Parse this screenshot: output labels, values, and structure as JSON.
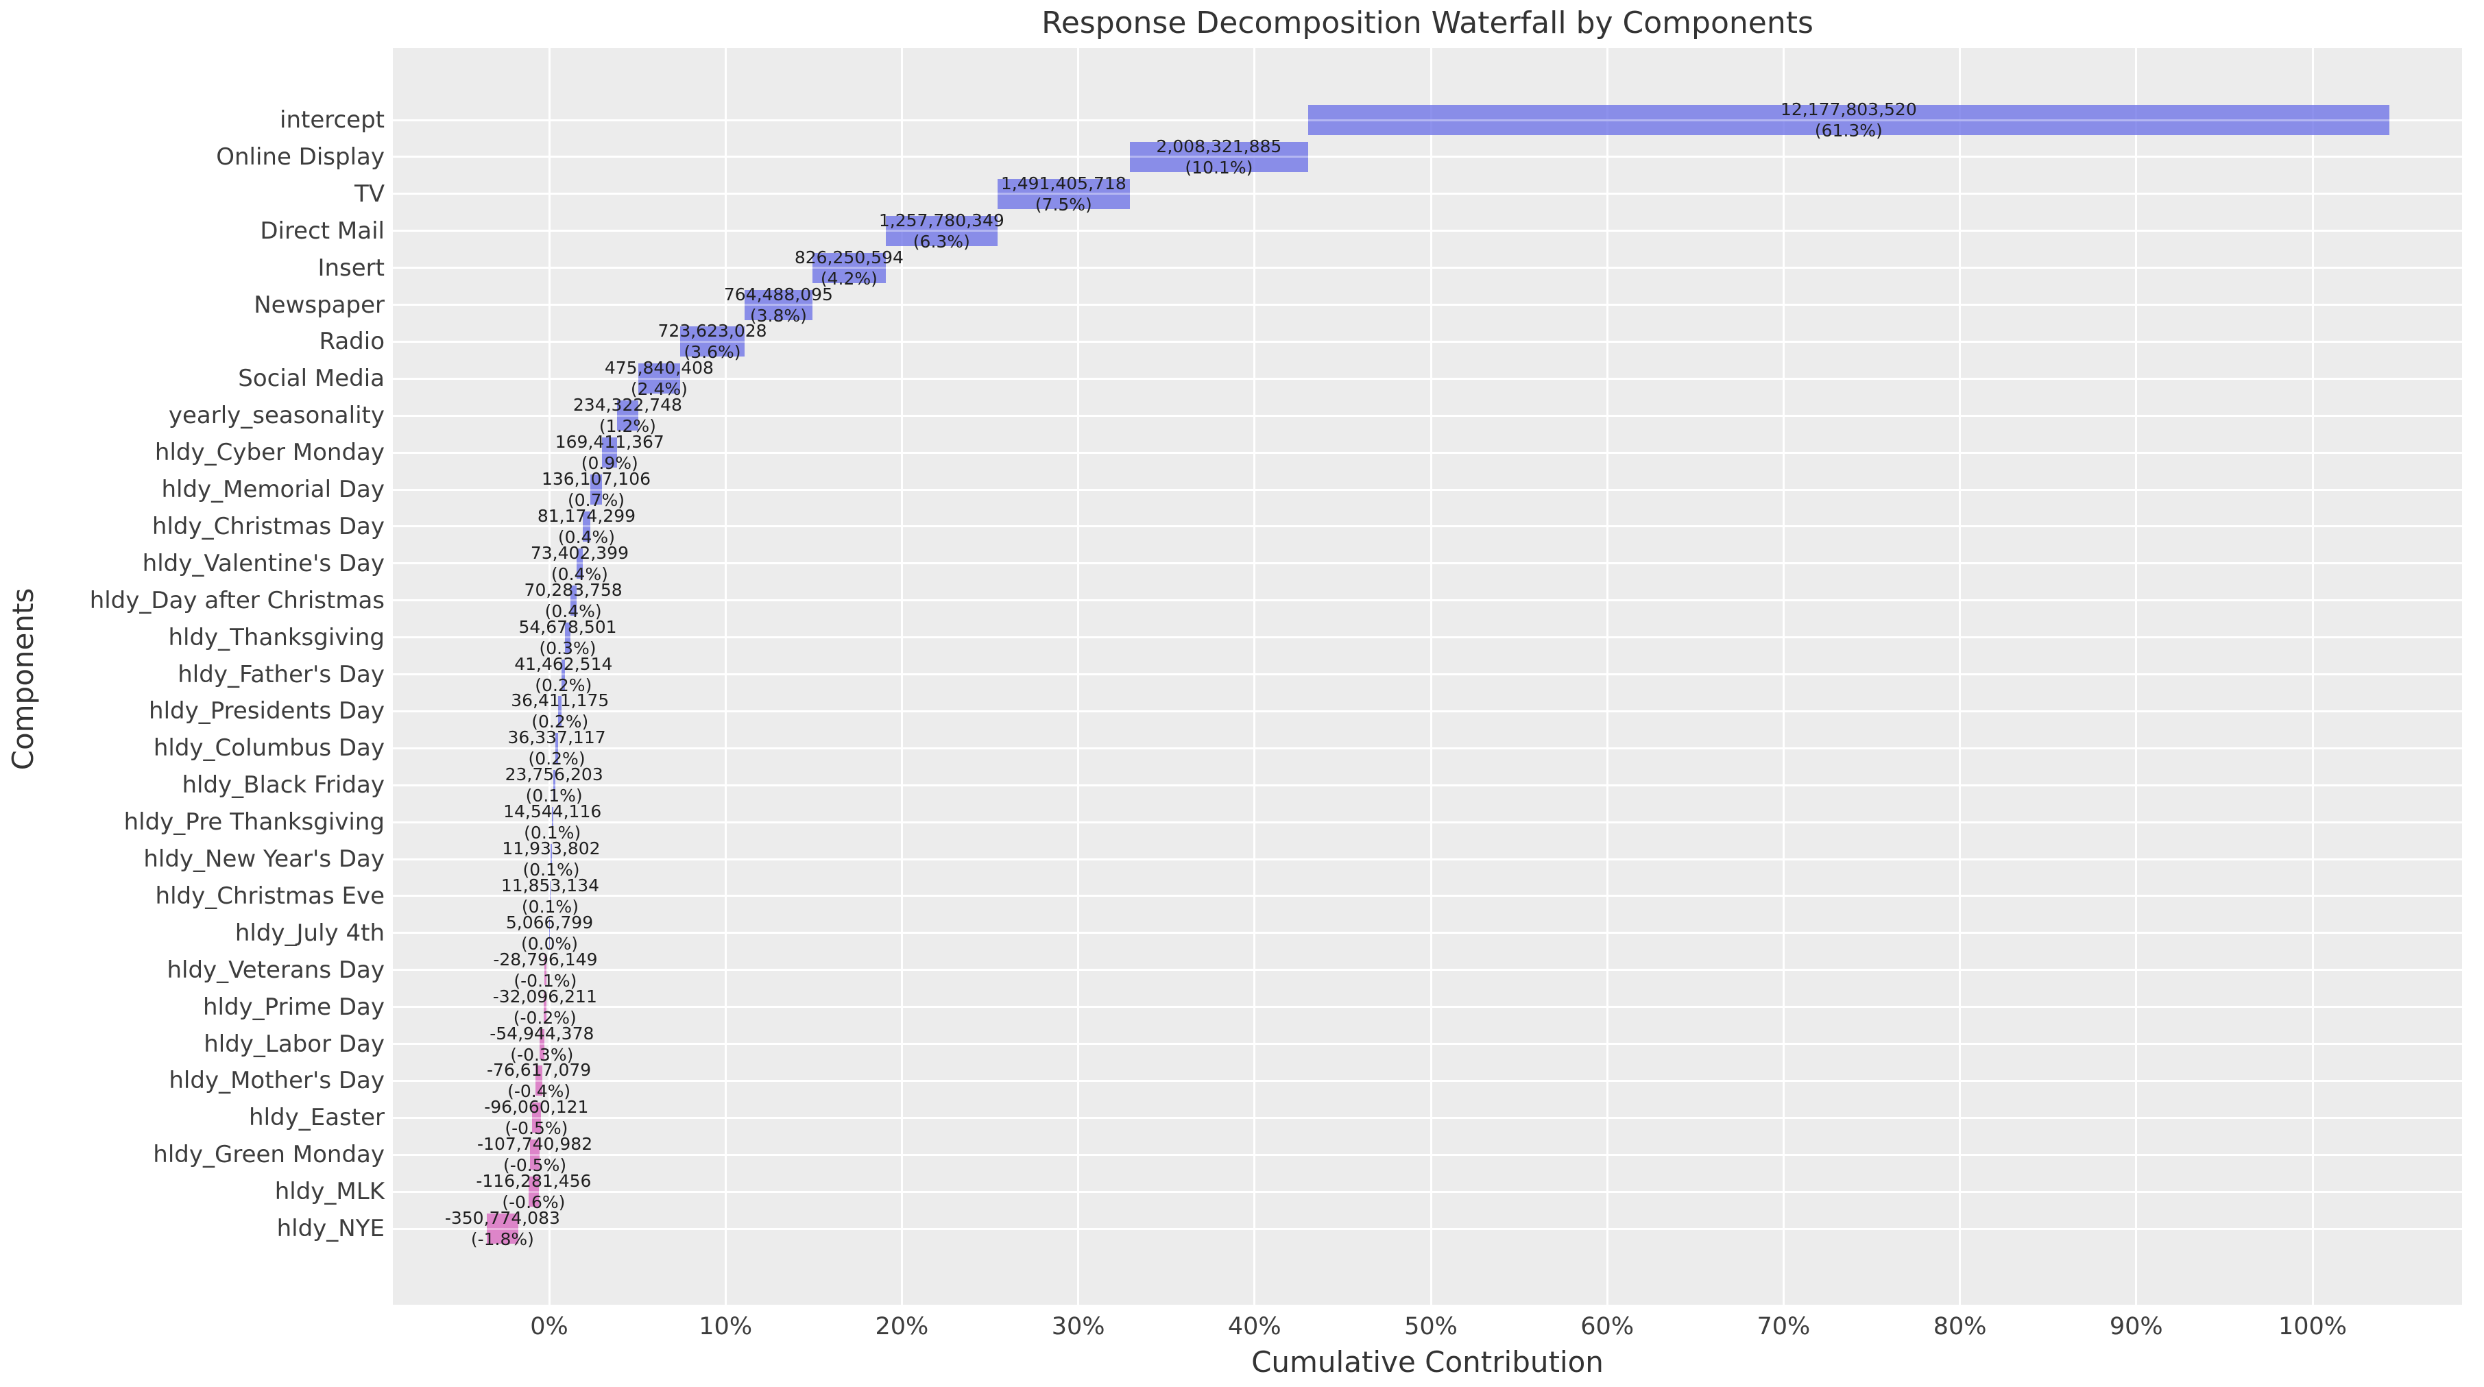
{
  "title": "Response Decomposition Waterfall by Components",
  "chart_data": {
    "type": "bar",
    "subtype": "waterfall",
    "orientation": "horizontal",
    "title": "Response Decomposition Waterfall by Components",
    "xlabel": "Cumulative Contribution",
    "ylabel": "Components",
    "grid": true,
    "legend": false,
    "x_ticks": [
      "0%",
      "10%",
      "20%",
      "30%",
      "40%",
      "50%",
      "60%",
      "70%",
      "80%",
      "90%",
      "100%"
    ],
    "x_tick_values": [
      0,
      10,
      20,
      30,
      40,
      50,
      60,
      70,
      80,
      90,
      100
    ],
    "colors": {
      "positive_bar": "#8A8EE8",
      "negative_bar": "#DE86C9",
      "plot_background": "#ECECEC",
      "gridline": "#ffffff",
      "text": "#333333"
    },
    "rows": [
      {
        "label": "intercept",
        "value": 12177803520,
        "value_label": "12,177,803,520",
        "pct_label": "(61.3%)"
      },
      {
        "label": "Online Display",
        "value": 2008321885,
        "value_label": "2,008,321,885",
        "pct_label": "(10.1%)"
      },
      {
        "label": "TV",
        "value": 1491405718,
        "value_label": "1,491,405,718",
        "pct_label": "(7.5%)"
      },
      {
        "label": "Direct Mail",
        "value": 1257780349,
        "value_label": "1,257,780,349",
        "pct_label": "(6.3%)"
      },
      {
        "label": "Insert",
        "value": 826250594,
        "value_label": "826,250,594",
        "pct_label": "(4.2%)"
      },
      {
        "label": "Newspaper",
        "value": 764488095,
        "value_label": "764,488,095",
        "pct_label": "(3.8%)"
      },
      {
        "label": "Radio",
        "value": 723623028,
        "value_label": "723,623,028",
        "pct_label": "(3.6%)"
      },
      {
        "label": "Social Media",
        "value": 475840408,
        "value_label": "475,840,408",
        "pct_label": "(2.4%)"
      },
      {
        "label": "yearly_seasonality",
        "value": 234322748,
        "value_label": "234,322,748",
        "pct_label": "(1.2%)"
      },
      {
        "label": "hldy_Cyber Monday",
        "value": 169411367,
        "value_label": "169,411,367",
        "pct_label": "(0.9%)"
      },
      {
        "label": "hldy_Memorial Day",
        "value": 136107106,
        "value_label": "136,107,106",
        "pct_label": "(0.7%)"
      },
      {
        "label": "hldy_Christmas Day",
        "value": 81174299,
        "value_label": "81,174,299",
        "pct_label": "(0.4%)"
      },
      {
        "label": "hldy_Valentine's Day",
        "value": 73402399,
        "value_label": "73,402,399",
        "pct_label": "(0.4%)"
      },
      {
        "label": "hldy_Day after Christmas",
        "value": 70283758,
        "value_label": "70,283,758",
        "pct_label": "(0.4%)"
      },
      {
        "label": "hldy_Thanksgiving",
        "value": 54678501,
        "value_label": "54,678,501",
        "pct_label": "(0.3%)"
      },
      {
        "label": "hldy_Father's Day",
        "value": 41462514,
        "value_label": "41,462,514",
        "pct_label": "(0.2%)"
      },
      {
        "label": "hldy_Presidents Day",
        "value": 36411175,
        "value_label": "36,411,175",
        "pct_label": "(0.2%)"
      },
      {
        "label": "hldy_Columbus Day",
        "value": 36337117,
        "value_label": "36,337,117",
        "pct_label": "(0.2%)"
      },
      {
        "label": "hldy_Black Friday",
        "value": 23756203,
        "value_label": "23,756,203",
        "pct_label": "(0.1%)"
      },
      {
        "label": "hldy_Pre Thanksgiving",
        "value": 14544116,
        "value_label": "14,544,116",
        "pct_label": "(0.1%)"
      },
      {
        "label": "hldy_New Year's Day",
        "value": 11933802,
        "value_label": "11,933,802",
        "pct_label": "(0.1%)"
      },
      {
        "label": "hldy_Christmas Eve",
        "value": 11853134,
        "value_label": "11,853,134",
        "pct_label": "(0.1%)"
      },
      {
        "label": "hldy_July 4th",
        "value": 5066799,
        "value_label": "5,066,799",
        "pct_label": "(0.0%)"
      },
      {
        "label": "hldy_Veterans Day",
        "value": -28796149,
        "value_label": "-28,796,149",
        "pct_label": "(-0.1%)"
      },
      {
        "label": "hldy_Prime Day",
        "value": -32096211,
        "value_label": "-32,096,211",
        "pct_label": "(-0.2%)"
      },
      {
        "label": "hldy_Labor Day",
        "value": -54944378,
        "value_label": "-54,944,378",
        "pct_label": "(-0.3%)"
      },
      {
        "label": "hldy_Mother's Day",
        "value": -76617079,
        "value_label": "-76,617,079",
        "pct_label": "(-0.4%)"
      },
      {
        "label": "hldy_Easter",
        "value": -96060121,
        "value_label": "-96,060,121",
        "pct_label": "(-0.5%)"
      },
      {
        "label": "hldy_Green Monday",
        "value": -107740982,
        "value_label": "-107,740,982",
        "pct_label": "(-0.5%)"
      },
      {
        "label": "hldy_MLK",
        "value": -116281456,
        "value_label": "-116,281,456",
        "pct_label": "(-0.6%)"
      },
      {
        "label": "hldy_NYE",
        "value": -350774083,
        "value_label": "-350,774,083",
        "pct_label": "(-1.8%)"
      }
    ]
  }
}
